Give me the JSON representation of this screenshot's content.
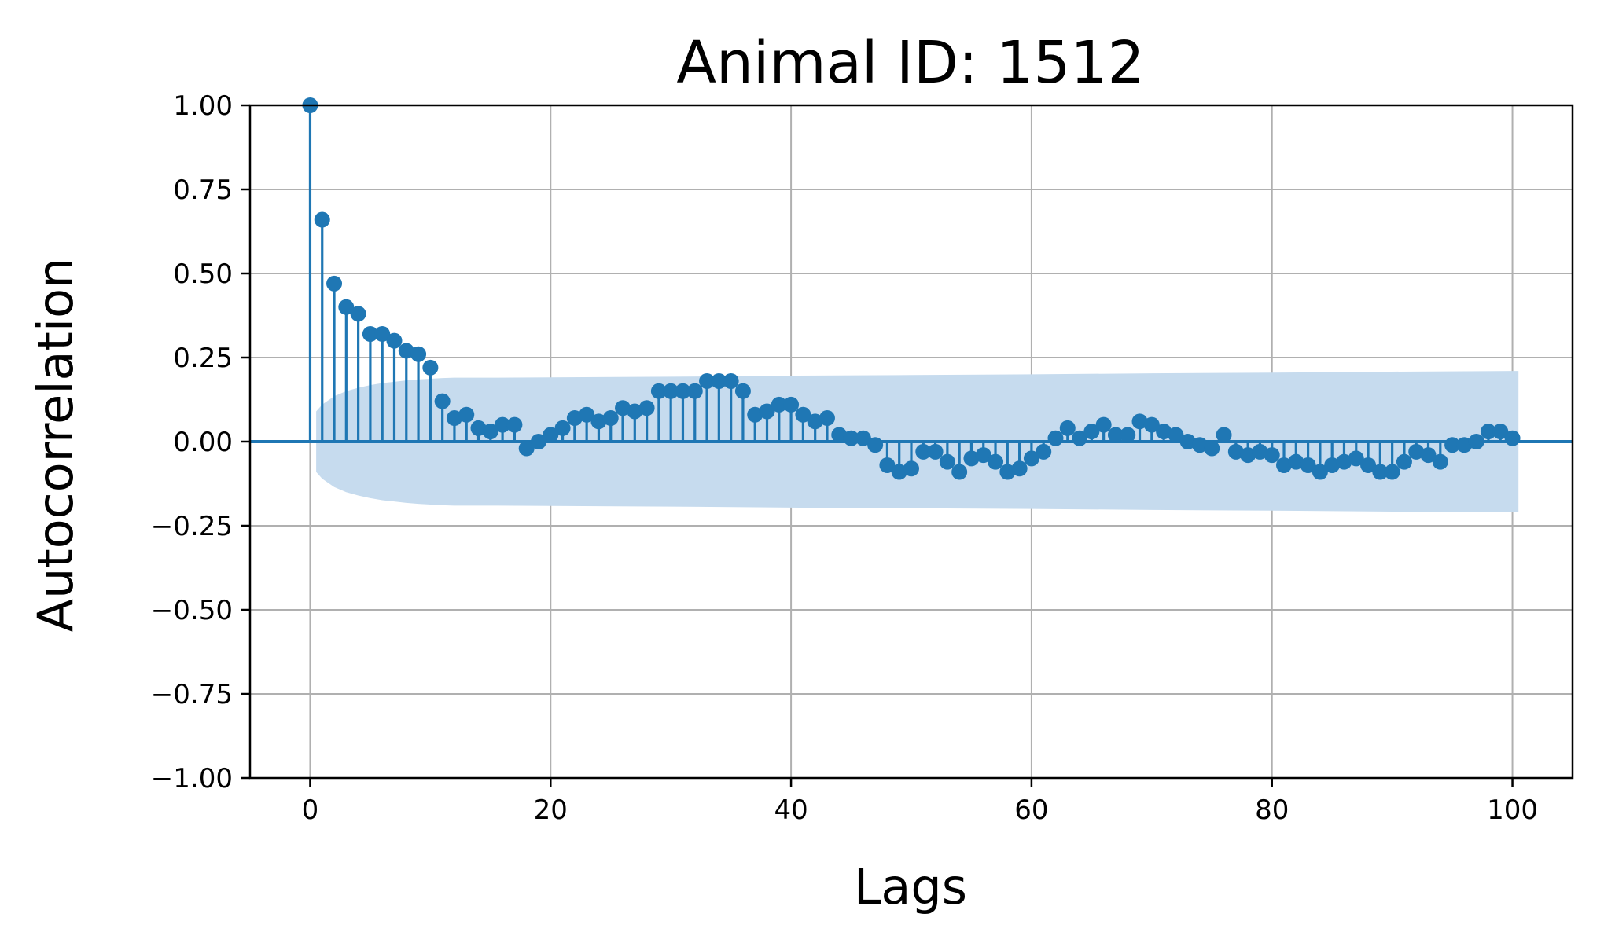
{
  "chart_data": {
    "type": "stem",
    "title": "Animal ID: 1512",
    "xlabel": "Lags",
    "ylabel": "Autocorrelation",
    "xlim": [
      -5,
      105
    ],
    "ylim": [
      -1.0,
      1.0
    ],
    "xticks": [
      0,
      20,
      40,
      60,
      80,
      100
    ],
    "xtick_labels": [
      "0",
      "20",
      "40",
      "60",
      "80",
      "100"
    ],
    "yticks": [
      1.0,
      0.75,
      0.5,
      0.25,
      0.0,
      -0.25,
      -0.5,
      -0.75,
      -1.0
    ],
    "ytick_labels": [
      "1.00",
      "0.75",
      "0.50",
      "0.25",
      "0.00",
      "−0.25",
      "−0.50",
      "−0.75",
      "−1.00"
    ],
    "grid": true,
    "colors": {
      "series": "#1f77b4",
      "band": "#c6dbee",
      "grid": "#b0b0b0"
    },
    "series": [
      {
        "lags": [
          0,
          1,
          2,
          3,
          4,
          5,
          6,
          7,
          8,
          9,
          10,
          11,
          12,
          13,
          14,
          15,
          16,
          17,
          18,
          19,
          20,
          21,
          22,
          23,
          24,
          25,
          26,
          27,
          28,
          29,
          30,
          31,
          32,
          33,
          34,
          35,
          36,
          37,
          38,
          39,
          40,
          41,
          42,
          43,
          44,
          45,
          46,
          47,
          48,
          49,
          50,
          51,
          52,
          53,
          54,
          55,
          56,
          57,
          58,
          59,
          60,
          61,
          62,
          63,
          64,
          65,
          66,
          67,
          68,
          69,
          70,
          71,
          72,
          73,
          74,
          75,
          76,
          77,
          78,
          79,
          80,
          81,
          82,
          83,
          84,
          85,
          86,
          87,
          88,
          89,
          90,
          91,
          92,
          93,
          94,
          95,
          96,
          97,
          98,
          99,
          100
        ],
        "values": [
          1.0,
          0.66,
          0.47,
          0.4,
          0.38,
          0.32,
          0.32,
          0.3,
          0.27,
          0.26,
          0.22,
          0.12,
          0.07,
          0.08,
          0.04,
          0.03,
          0.05,
          0.05,
          -0.02,
          0.0,
          0.02,
          0.04,
          0.07,
          0.08,
          0.06,
          0.07,
          0.1,
          0.09,
          0.1,
          0.15,
          0.15,
          0.15,
          0.15,
          0.18,
          0.18,
          0.18,
          0.15,
          0.08,
          0.09,
          0.11,
          0.11,
          0.08,
          0.06,
          0.07,
          0.02,
          0.01,
          0.01,
          -0.01,
          -0.07,
          -0.09,
          -0.08,
          -0.03,
          -0.03,
          -0.06,
          -0.09,
          -0.05,
          -0.04,
          -0.06,
          -0.09,
          -0.08,
          -0.05,
          -0.03,
          0.01,
          0.04,
          0.01,
          0.03,
          0.05,
          0.02,
          0.02,
          0.06,
          0.05,
          0.03,
          0.02,
          0.0,
          -0.01,
          -0.02,
          0.02,
          -0.03,
          -0.04,
          -0.03,
          -0.04,
          -0.07,
          -0.06,
          -0.07,
          -0.09,
          -0.07,
          -0.06,
          -0.05,
          -0.07,
          -0.09,
          -0.09,
          -0.06,
          -0.03,
          -0.04,
          -0.06,
          -0.01,
          -0.01,
          0.0,
          0.03,
          0.03,
          0.01
        ]
      }
    ],
    "confidence_band": {
      "lags": [
        0.5,
        1,
        2,
        3,
        4,
        5,
        6,
        7,
        8,
        9,
        10,
        11,
        12,
        15,
        20,
        30,
        40,
        50,
        60,
        70,
        80,
        90,
        100,
        100.5
      ],
      "upper": [
        0.09,
        0.11,
        0.135,
        0.15,
        0.16,
        0.168,
        0.174,
        0.178,
        0.182,
        0.185,
        0.187,
        0.189,
        0.19,
        0.19,
        0.191,
        0.193,
        0.196,
        0.198,
        0.2,
        0.203,
        0.205,
        0.208,
        0.21,
        0.21
      ]
    }
  }
}
